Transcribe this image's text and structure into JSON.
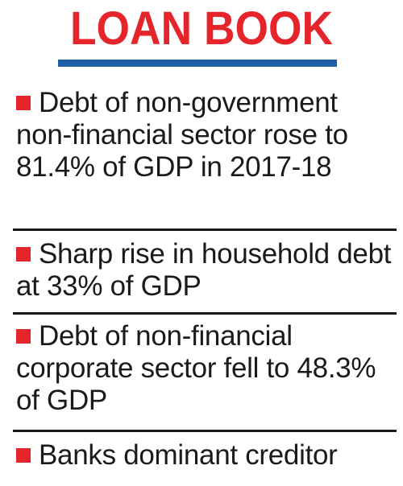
{
  "header": {
    "title": "LOAN BOOK"
  },
  "items": [
    {
      "text": "Debt of non-government non-financial sector rose to 81.4% of GDP in 2017-18"
    },
    {
      "text": "Sharp rise in household debt at 33% of GDP"
    },
    {
      "text": "Debt of non-financial corporate sector fell to 48.3% of GDP"
    },
    {
      "text": "Banks dominant creditor"
    }
  ],
  "colors": {
    "title": "#e5242b",
    "title_rule": "#1f5fa8",
    "bullet": "#e5242b",
    "text": "#1a1a1a",
    "divider": "#1a1a1a"
  }
}
